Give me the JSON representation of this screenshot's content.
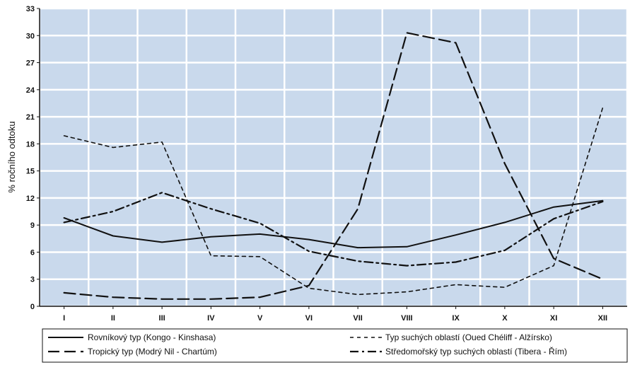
{
  "chart_data": {
    "type": "line",
    "title": "",
    "xlabel": "",
    "ylabel": "% ročního odtoku",
    "categories": [
      "I",
      "II",
      "III",
      "IV",
      "V",
      "VI",
      "VII",
      "VIII",
      "IX",
      "X",
      "XI",
      "XII"
    ],
    "yticks": [
      0,
      3,
      6,
      9,
      12,
      15,
      18,
      21,
      24,
      27,
      30,
      33
    ],
    "ylim": [
      0,
      33
    ],
    "grid": true,
    "legend_position": "bottom",
    "series": [
      {
        "name": "Rovníkový typ (Kongo - Kinshasa)",
        "style": "solid",
        "values": [
          9.8,
          7.8,
          7.1,
          7.7,
          8.0,
          7.4,
          6.5,
          6.6,
          7.9,
          9.3,
          11.0,
          11.7
        ]
      },
      {
        "name": "Tropický typ (Modrý Nil - Chartúm)",
        "style": "longdash",
        "values": [
          1.5,
          1.0,
          0.8,
          0.8,
          1.0,
          2.3,
          10.8,
          30.3,
          29.2,
          15.8,
          5.3,
          3.0
        ]
      },
      {
        "name": "Typ suchých oblastí (Oued Chéliff - Alžírsko)",
        "style": "shortdash",
        "values": [
          18.9,
          17.6,
          18.2,
          5.6,
          5.5,
          2.0,
          1.3,
          1.6,
          2.4,
          2.1,
          4.5,
          22.0
        ]
      },
      {
        "name": "Středomořský typ suchých oblastí (Tibera - Řím)",
        "style": "dashdot",
        "values": [
          9.3,
          10.5,
          12.6,
          10.8,
          9.2,
          6.1,
          5.0,
          4.5,
          4.9,
          6.2,
          9.7,
          11.6
        ]
      }
    ]
  }
}
